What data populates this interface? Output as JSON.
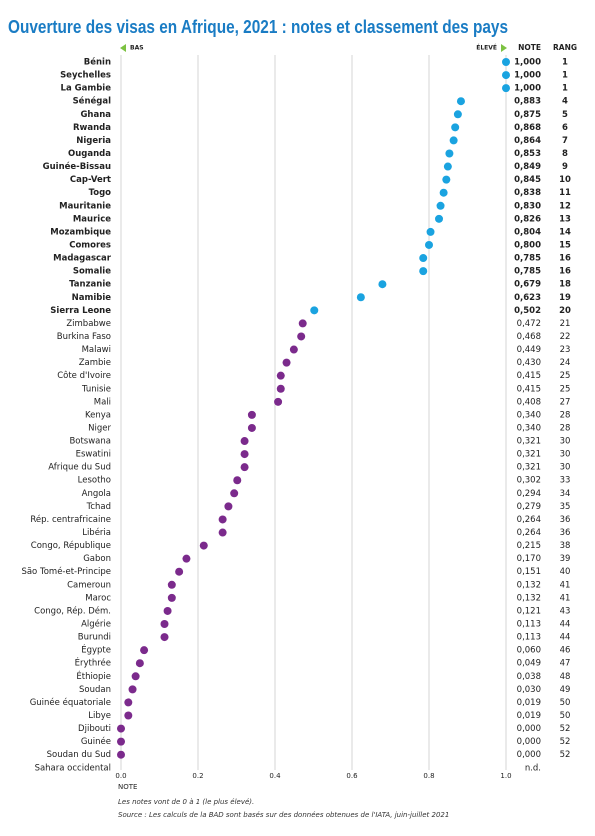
{
  "chart_data": {
    "type": "dot",
    "title": "Ouverture des visas en Afrique, 2021 : notes et classement des pays",
    "low_label": "BAS",
    "high_label": "ÉLEVÉ",
    "note_header": "NOTE",
    "rank_header": "RANG",
    "x_label": "NOTE",
    "notes": "Les notes vont de 0 à 1 (le plus élevé).",
    "source": "Source : Les calculs de la BAD sont basés sur des données obtenues de l'IATA, juin-juillet 2021",
    "categories": [
      "Bénin",
      "Seychelles",
      "La Gambie",
      "Sénégal",
      "Ghana",
      "Rwanda",
      "Nigeria",
      "Ouganda",
      "Guinée-Bissau",
      "Cap-Vert",
      "Togo",
      "Mauritanie",
      "Maurice",
      "Mozambique",
      "Comores",
      "Madagascar",
      "Somalie",
      "Tanzanie",
      "Namibie",
      "Sierra Leone",
      "Zimbabwe",
      "Burkina Faso",
      "Malawi",
      "Zambie",
      "Côte d'Ivoire",
      "Tunisie",
      "Mali",
      "Kenya",
      "Niger",
      "Botswana",
      "Eswatini",
      "Afrique du Sud",
      "Lesotho",
      "Angola",
      "Tchad",
      "Rép. centrafricaine",
      "Libéria",
      "Congo, République",
      "Gabon",
      "São Tomé-et-Principe",
      "Cameroun",
      "Maroc",
      "Congo, Rép. Dém.",
      "Algérie",
      "Burundi",
      "Égypte",
      "Érythrée",
      "Éthiopie",
      "Soudan",
      "Guinée équatoriale",
      "Libye",
      "Djibouti",
      "Guinée",
      "Soudan du Sud",
      "Sahara occidental"
    ],
    "values": [
      1,
      1,
      1,
      0.883,
      0.875,
      0.868,
      0.864,
      0.853,
      0.849,
      0.845,
      0.838,
      0.83,
      0.826,
      0.804,
      0.8,
      0.785,
      0.785,
      0.679,
      0.623,
      0.502,
      0.472,
      0.468,
      0.449,
      0.43,
      0.415,
      0.415,
      0.408,
      0.34,
      0.34,
      0.321,
      0.321,
      0.321,
      0.302,
      0.294,
      0.279,
      0.264,
      0.264,
      0.215,
      0.17,
      0.151,
      0.132,
      0.132,
      0.121,
      0.113,
      0.113,
      0.06,
      0.049,
      0.038,
      0.03,
      0.019,
      0.019,
      0,
      0,
      0,
      null
    ],
    "value_labels": [
      "1,000",
      "1,000",
      "1,000",
      "0,883",
      "0,875",
      "0,868",
      "0,864",
      "0,853",
      "0,849",
      "0,845",
      "0,838",
      "0,830",
      "0,826",
      "0,804",
      "0,800",
      "0,785",
      "0,785",
      "0,679",
      "0,623",
      "0,502",
      "0,472",
      "0,468",
      "0,449",
      "0,430",
      "0,415",
      "0,415",
      "0,408",
      "0,340",
      "0,340",
      "0,321",
      "0,321",
      "0,321",
      "0,302",
      "0,294",
      "0,279",
      "0,264",
      "0,264",
      "0,215",
      "0,170",
      "0,151",
      "0,132",
      "0,132",
      "0,121",
      "0,113",
      "0,113",
      "0,060",
      "0,049",
      "0,038",
      "0,030",
      "0,019",
      "0,019",
      "0,000",
      "0,000",
      "0,000",
      "n.d."
    ],
    "ranks": [
      1,
      1,
      1,
      4,
      5,
      6,
      7,
      8,
      9,
      10,
      11,
      12,
      13,
      14,
      15,
      16,
      16,
      18,
      19,
      20,
      21,
      22,
      23,
      24,
      25,
      25,
      27,
      28,
      28,
      30,
      30,
      30,
      33,
      34,
      35,
      36,
      36,
      38,
      39,
      40,
      41,
      41,
      43,
      44,
      44,
      46,
      47,
      48,
      49,
      50,
      50,
      52,
      52,
      52,
      null
    ],
    "colors": [
      "#1aa3e0",
      "#1aa3e0",
      "#1aa3e0",
      "#1aa3e0",
      "#1aa3e0",
      "#1aa3e0",
      "#1aa3e0",
      "#1aa3e0",
      "#1aa3e0",
      "#1aa3e0",
      "#1aa3e0",
      "#1aa3e0",
      "#1aa3e0",
      "#1aa3e0",
      "#1aa3e0",
      "#1aa3e0",
      "#1aa3e0",
      "#1aa3e0",
      "#1aa3e0",
      "#1aa3e0",
      "#7b2a8c",
      "#7b2a8c",
      "#7b2a8c",
      "#7b2a8c",
      "#7b2a8c",
      "#7b2a8c",
      "#7b2a8c",
      "#7b2a8c",
      "#7b2a8c",
      "#7b2a8c",
      "#7b2a8c",
      "#7b2a8c",
      "#7b2a8c",
      "#7b2a8c",
      "#7b2a8c",
      "#7b2a8c",
      "#7b2a8c",
      "#7b2a8c",
      "#7b2a8c",
      "#7b2a8c",
      "#7b2a8c",
      "#7b2a8c",
      "#7b2a8c",
      "#7b2a8c",
      "#7b2a8c",
      "#7b2a8c",
      "#7b2a8c",
      "#7b2a8c",
      "#7b2a8c",
      "#7b2a8c",
      "#7b2a8c",
      "#7b2a8c",
      "#7b2a8c",
      "#7b2a8c",
      null
    ],
    "xlim": [
      0,
      1
    ],
    "xticks": [
      {
        "value": 0,
        "label": "0.0"
      },
      0.2,
      0.4,
      0.6,
      0.8,
      {
        "value": 1,
        "label": "1.0"
      }
    ],
    "grid": true
  }
}
